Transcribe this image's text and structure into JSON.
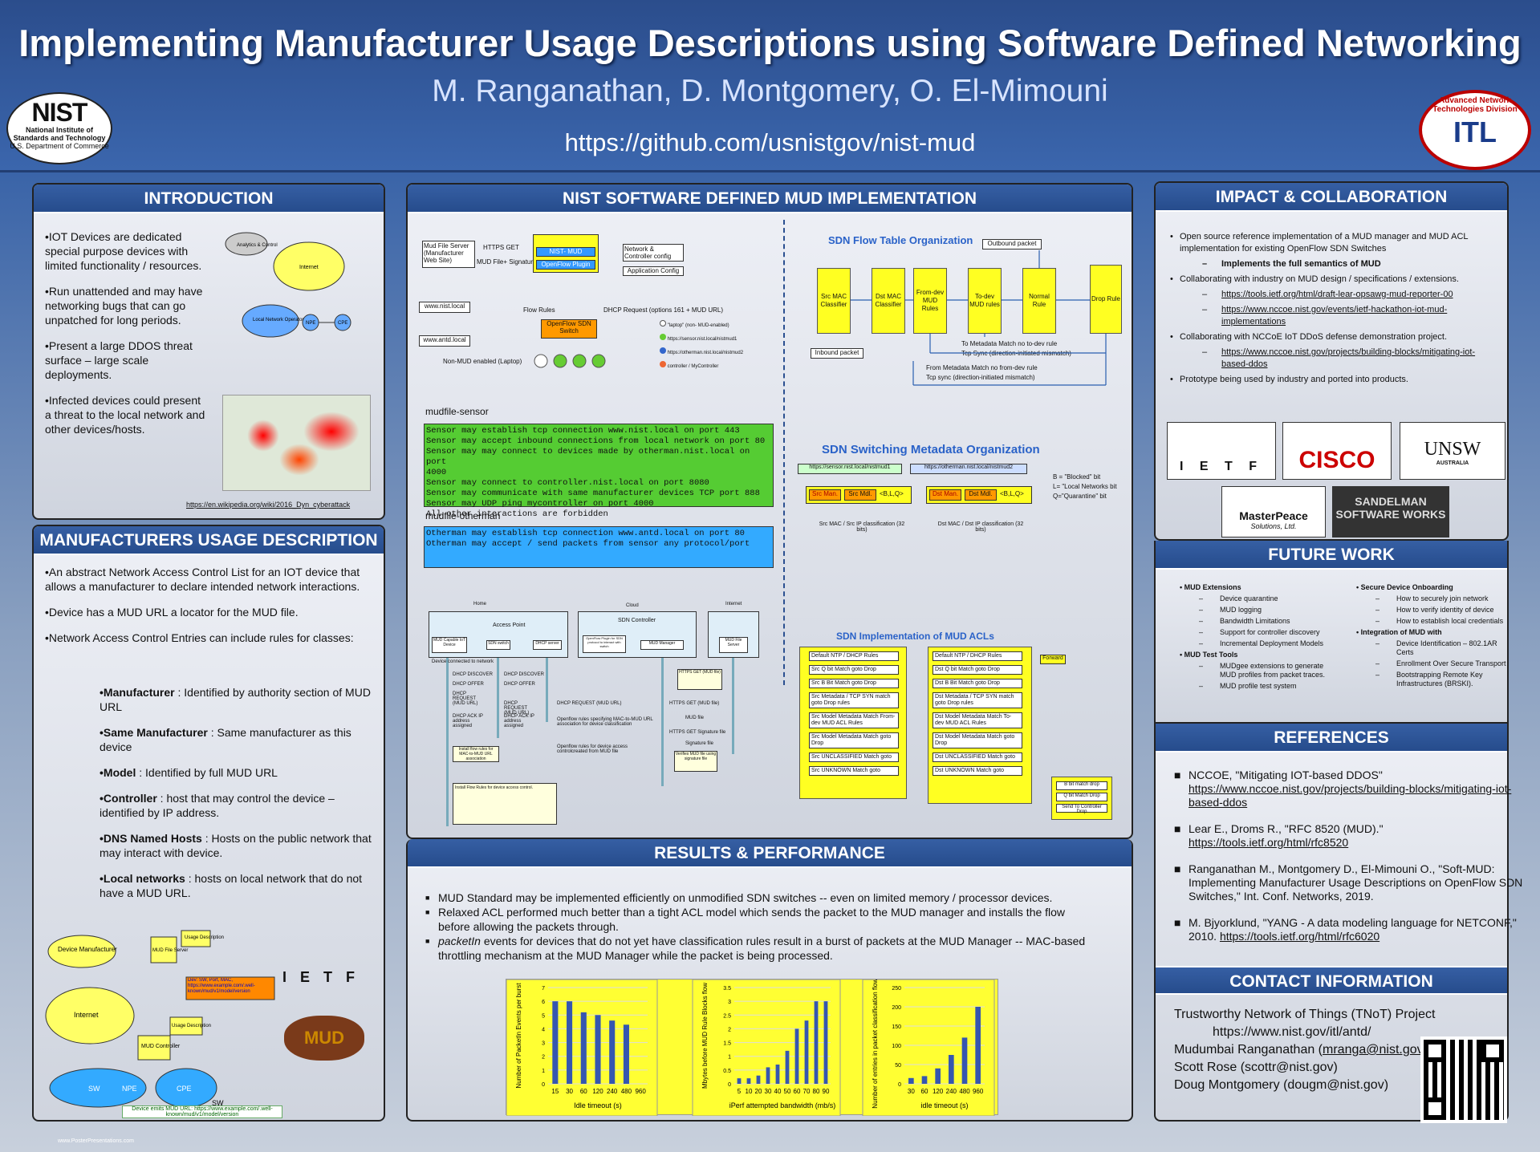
{
  "header": {
    "title": "Implementing Manufacturer Usage Descriptions using Software Defined Networking",
    "authors": "M. Ranganathan, D. Montgomery, O. El-Mimouni",
    "url": "https://github.com/usnistgov/nist-mud",
    "nist_logo": "NIST",
    "nist_sub1": "National Institute of",
    "nist_sub2": "Standards and Technology",
    "nist_sub3": "U.S. Department of Commerce",
    "itl_logo": "ITL",
    "itl_ring": "Advanced Network Technologies Division"
  },
  "intro": {
    "title": "INTRODUCTION",
    "bullets": [
      "•IOT Devices are dedicated special purpose devices with limited functionality / resources.",
      "•Run unattended and may have networking bugs that can go unpatched for long periods.",
      "•Present a large DDOS threat surface – large scale deployments.",
      "•Infected devices could present a threat to the local network and other devices/hosts."
    ],
    "link": "https://en.wikipedia.org/wiki/2016_Dyn_cyberattack",
    "diag": {
      "analytics": "Analytics & Control",
      "internet": "Internet",
      "operator": "Local Network Operator",
      "npe": "NPE",
      "cpe": "CPE"
    }
  },
  "mud": {
    "title": "MANUFACTURERS USAGE DESCRIPTION",
    "bullets": [
      "•An abstract Network Access Control List for an IOT device that allows a manufacturer to declare intended network interactions.",
      "•Device has a MUD URL a locator for the MUD file.",
      "•Network Access Control Entries can include rules for classes:"
    ],
    "classes": [
      {
        "k": "•Manufacturer",
        "v": " : Identified by authority section of MUD URL"
      },
      {
        "k": "•Same Manufacturer",
        "v": " : Same manufacturer as this device"
      },
      {
        "k": "•Model",
        "v": " : Identified by full MUD URL"
      },
      {
        "k": "•Controller",
        "v": " : host that may control the device – identified by IP address."
      },
      {
        "k": "•DNS Named Hosts",
        "v": " : Hosts on the public network that may interact with device."
      },
      {
        "k": "•Local networks",
        "v": " : hosts on local network that do not have a MUD URL."
      }
    ],
    "diag": {
      "manufacturer": "Device Manufacturer",
      "mudfile": "MUD File Server",
      "usage": "Usage Description",
      "internet": "Internet",
      "info": "Dev: SW, Port, MAC, https://www.example.com/.well-known/mud/v1/model/version",
      "controller": "MUD Controller",
      "usage2": "Usage Description",
      "sw": "SW",
      "npe": "NPE",
      "cpe": "CPE",
      "sw2": "SW",
      "emits": "Device emits MUD URL: https://www.example.com/.well-known/mud/v1/model/version",
      "ietf": "I E T F",
      "mud": "MUD"
    }
  },
  "impl": {
    "title": "NIST SOFTWARE DEFINED MUD IMPLEMENTATION",
    "arch": {
      "mudserver": "Mud File Server (Manufacturer Web Site)",
      "https": "HTTPS GET",
      "sig": "MUD File+ Signature",
      "nistmud": "NIST- MUD",
      "ofplugin": "OpenFlow Plugin",
      "netctrl": "Network & Controller config",
      "appcfg": "Application Config",
      "flowrules": "Flow Rules",
      "ofswitch": "OpenFlow SDN Switch",
      "dhcp": "DHCP Request (options 161 + MUD URL)",
      "nist": "www.nist.local",
      "antd": "www.antd.local",
      "nonmud": "Non-MUD enabled (Laptop)",
      "leg": [
        "\"laptop\" (non- MUD-enabled)",
        "https://sensor.nist.local/nistmud1",
        "https://otherman.nist.local/nistmud2",
        "controller / MyController"
      ]
    },
    "sensor_label": "mudfile-sensor",
    "sensor_lines": [
      "Sensor may establish tcp connection  www.nist.local on port 443",
      "Sensor may accept inbound connections from local network on port 80",
      "Sensor may may connect to devices made by otherman.nist.local on port",
      "4000",
      "Sensor may connect to controller.nist.local on port 8080",
      "Sensor may communicate with same manufacturer devices TCP port 888",
      "Sensor may UDP ping mycontroller on port 4000",
      "All other interactions are forbidden"
    ],
    "other_label": "mudfile-otherman",
    "other_lines": [
      "Otherman may establish tcp connection  www.antd.local on port 80",
      "Otherman may  accept / send packets from sensor any protocol/port"
    ],
    "seq": {
      "home": "Home",
      "cloud": "Cloud",
      "internet": "Internet",
      "ap": "Access Point",
      "sdn": "SDN Controller",
      "dev": "MUD Capable IoT Device",
      "sw": "SDN switch",
      "dhcps": "DHCP server",
      "plugin": "OpenFlow Plugin for SDN protocol to interact with switch",
      "mgr": "MUD Manager",
      "mudsrv": "MUD File Server",
      "msgs": [
        "Device connected to network",
        "DHCP DISCOVER",
        "DHCP OFFER",
        "DHCP REQUEST (MUD URL)",
        "DHCP ACK IP address assigned",
        "DHCP REQUEST (MUD URL)",
        "Install flow rules for MAC-to-MUD URL association",
        "HTTPS GET (MUD file)",
        "MUD file",
        "HTTPS GET Signature file",
        "Signature file",
        "Verifies MUD file using signature file",
        "Openflow rules specifying MAC-to-MUD URL association for device classification",
        "Openflow rules for device access controlcreated from MUD file",
        "Install Flow Rules for device access control."
      ]
    },
    "flow": {
      "title": "SDN Flow Table Organization",
      "tables": [
        "Src MAC Classifier",
        "Dst MAC Classifier",
        "From-dev MUD Rules",
        "To-dev MUD rules",
        "Normal Rule",
        "Drop Rule"
      ],
      "outbound": "Outbound packet",
      "inbound": "Inbound packet",
      "n1": "To Metadata Match no to-dev rule",
      "n2": "Tcp Sync (direction-initiated mismatch)",
      "n3": "From Metadata Match no from-dev rule",
      "n4": "Tcp sync (direction-initiated mismatch)"
    },
    "meta": {
      "title": "SDN Switching Metadata Organization",
      "u1": "https://sensor.nist.local/nistmud1",
      "u2": "https://otherman.nist.local/nistmud2",
      "cells": [
        "Src Man.",
        "Src Mdl.",
        "<B,L,Q>",
        "Dst Man.",
        "Dst Mdl.",
        "<B,L,Q>"
      ],
      "c1": "Src MAC / Src IP classification (32 bits)",
      "c2": "Dst MAC / Dst IP classification (32 bits)",
      "b": "B = \"Blocked\" bit",
      "l": "L= \"Local Networks bit",
      "q": "Q=\"Quarantine\" bit"
    },
    "acl": {
      "title": "SDN Implementation of MUD ACLs",
      "left": [
        "Default NTP / DHCP  Rules",
        "Src Q bit Match goto Drop",
        "Src B Bit Match goto Drop",
        "Src Metadata / TCP SYN match goto Drop rules",
        "Src Model Metadata Match From-dev MUD ACL Rules",
        "Src Model Metadata Match goto Drop",
        "Src UNCLASSIFIED Match goto",
        "Src UNKNOWN Match goto"
      ],
      "right": [
        "Default NTP / DHCP  Rules",
        "Dst Q bit Match goto Drop",
        "Dst B Bit Match goto Drop",
        "Dst Metadata / TCP SYN match goto Drop rules",
        "Dst Model Metadata Match To-dev MUD ACL Rules",
        "Dst  Model Metadata Match goto Drop",
        "Dst UNCLASSIFIED Match goto",
        "Dst UNKNOWN Match goto"
      ],
      "forward": "Forward",
      "drop": [
        "B bit match drop",
        "Q bit Match Drop",
        "Send To Controller Drop"
      ]
    }
  },
  "results": {
    "title": "RESULTS & PERFORMANCE",
    "b1": "MUD Standard may be implemented efficiently on unmodified SDN switches -- even on limited memory / processor devices.",
    "b2": "Relaxed ACL  performed much better than a tight ACL model which sends the packet to the MUD manager and installs the flow before allowing the packets through.",
    "b3a": "packetIn",
    "b3b": " events for devices that do not yet have classification rules result in a burst of packets at the MUD Manager -- MAC-based throttling mechanism at the MUD Manager while the packet is being processed."
  },
  "chart_data": [
    {
      "type": "bar",
      "categories": [
        "15",
        "30",
        "60",
        "120",
        "240",
        "480",
        "960"
      ],
      "values": [
        6.0,
        6.0,
        5.2,
        5.0,
        4.6,
        4.3,
        0
      ],
      "xlabel": "Idle timeout (s)",
      "ylabel": "Number of PacketIn Events per burst",
      "ylim": [
        0,
        7
      ],
      "yticks": [
        0,
        1,
        2,
        3,
        4,
        5,
        6,
        7
      ]
    },
    {
      "type": "bar",
      "categories": [
        "5",
        "10",
        "20",
        "30",
        "40",
        "50",
        "60",
        "70",
        "80",
        "90"
      ],
      "values": [
        0.2,
        0.2,
        0.3,
        0.6,
        0.7,
        1.2,
        2.0,
        2.3,
        3.0,
        3.0
      ],
      "xlabel": "iPerf attempted bandwidth (mb/s)",
      "ylabel": "Mbytes before MUD Rule Blocks flow",
      "ylim": [
        0,
        3.5
      ],
      "yticks": [
        0,
        0.5,
        1,
        1.5,
        2,
        2.5,
        3,
        3.5
      ]
    },
    {
      "type": "bar",
      "categories": [
        "30",
        "60",
        "120",
        "240",
        "480",
        "960"
      ],
      "values": [
        15,
        20,
        40,
        75,
        120,
        200
      ],
      "xlabel": "idle timeout (s)",
      "ylabel": "Number of entries in packet classification flow rules",
      "ylim": [
        0,
        250
      ],
      "yticks": [
        0,
        50,
        100,
        150,
        200,
        250
      ]
    }
  ],
  "impact": {
    "title": "IMPACT & COLLABORATION",
    "items": [
      {
        "t": "Open source reference implementation of a MUD manager and MUD ACL implementation for existing OpenFlow SDN Switches",
        "subs": [
          {
            "t": "Implements the full semantics of MUD",
            "b": true
          }
        ]
      },
      {
        "t": "Collaborating with industry on MUD design / specifications / extensions.",
        "subs": [
          {
            "t": "https://tools.ietf.org/html/draft-lear-opsawg-mud-reporter-00",
            "u": true
          },
          {
            "t": "https://www.nccoe.nist.gov/events/ietf-hackathon-iot-mud-implementations",
            "u": true
          }
        ]
      },
      {
        "t": "Collaborating with NCCoE IoT DDoS defense demonstration project.",
        "subs": [
          {
            "t": "https://www.nccoe.nist.gov/projects/building-blocks/mitigating-iot-based-ddos",
            "u": true
          }
        ]
      },
      {
        "t": "Prototype being used by industry and ported into products.",
        "subs": []
      }
    ],
    "logos": [
      "I E T F",
      "CISCO",
      "UNSW",
      "MasterPeace",
      "SANDELMAN SOFTWARE WORKS"
    ],
    "logo_subs": [
      "Solutions, Ltd.",
      "AUSTRALIA"
    ]
  },
  "future": {
    "title": "FUTURE WORK",
    "col1": [
      {
        "h": "MUD Extensions",
        "i": [
          "Device quarantine",
          "MUD logging",
          "Bandwidth Limitations",
          "Support for controller discovery",
          "Incremental Deployment Models"
        ]
      },
      {
        "h": "MUD Test Tools",
        "i": [
          "MUDgee extensions to generate MUD profiles from packet traces.",
          "MUD profile test system"
        ]
      }
    ],
    "col2": [
      {
        "h": "Secure Device Onboarding",
        "i": [
          "How to securely join network",
          "How to verify identity of device",
          "How to establish local credentials"
        ]
      },
      {
        "h": "Integration of MUD with",
        "i": [
          "Device Identification – 802.1AR Certs",
          "Enrollment Over Secure Transport",
          "Bootstrapping Remote Key Infrastructures (BRSKI)."
        ]
      }
    ]
  },
  "refs": {
    "title": "REFERENCES",
    "items": [
      {
        "t": "NCCOE, \"Mitigating IOT-based DDOS\"",
        "u": "https://www.nccoe.nist.gov/projects/building-blocks/mitigating-iot-based-ddos"
      },
      {
        "t": "Lear E., Droms R.,  \"RFC 8520 (MUD).\"",
        "u": "https://tools.ietf.org/html/rfc8520"
      },
      {
        "t": "Ranganathan M., Montgomery D., El-Mimouni O.,  \"Soft-MUD: Implementing Manufacturer Usage Descriptions on OpenFlow SDN Switches,\" Int. Conf. Networks, 2019.",
        "u": ""
      },
      {
        "t": "M. Bjyorklund, \"YANG - A data modeling language for NETCONF,\" 2010. ",
        "u": "https://tools.ietf.org/html/rfc6020"
      }
    ]
  },
  "contact": {
    "title": "CONTACT INFORMATION",
    "l1": "Trustworthy Network of Things (TNoT) Project",
    "l2": "https://www.nist.gov/itl/antd/",
    "l3a": "Mudumbai Ranganathan (",
    "l3b": "mranga@nist.gov",
    "l3c": ")",
    "l4": "Scott Rose (scottr@nist.gov)",
    "l5": "Doug Montgomery (dougm@nist.gov)"
  },
  "footer": "www.PosterPresentations.com"
}
